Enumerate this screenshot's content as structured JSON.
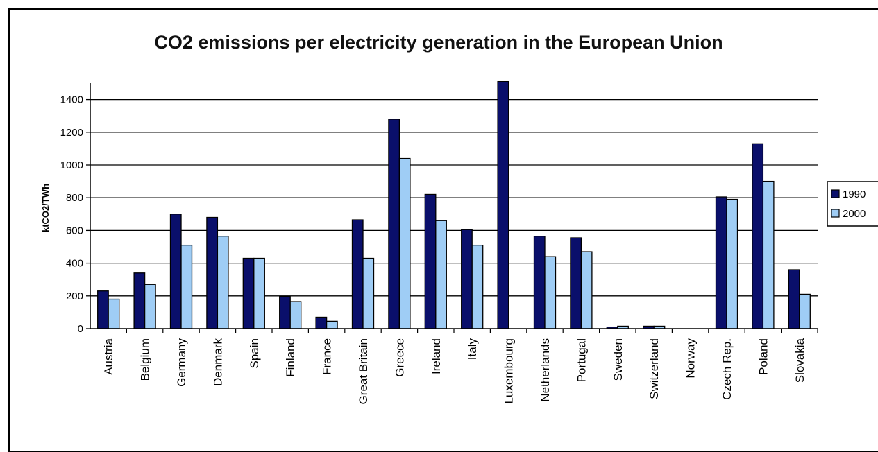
{
  "chart_data": {
    "type": "bar",
    "title": "CO2 emissions per electricity generation in the European Union",
    "xlabel": "",
    "ylabel": "ktCO2/TWh",
    "ylim": [
      0,
      1500
    ],
    "yticks": [
      0,
      200,
      400,
      600,
      800,
      1000,
      1200,
      1400
    ],
    "grid": true,
    "legend_position": "right",
    "categories": [
      "Austria",
      "Belgium",
      "Germany",
      "Denmark",
      "Spain",
      "Finland",
      "France",
      "Great Britain",
      "Greece",
      "Ireland",
      "Italy",
      "Luxembourg",
      "Netherlands",
      "Portugal",
      "Sweden",
      "Switzerland",
      "Norway",
      "Czech Rep.",
      "Poland",
      "Slovakia"
    ],
    "series": [
      {
        "name": "1990",
        "color": "#0a0f6b",
        "values": [
          230,
          340,
          700,
          680,
          430,
          195,
          70,
          665,
          1280,
          820,
          605,
          1510,
          565,
          555,
          10,
          15,
          0,
          805,
          1130,
          360
        ]
      },
      {
        "name": "2000",
        "color": "#9fcdf5",
        "values": [
          180,
          270,
          510,
          565,
          430,
          165,
          45,
          430,
          1040,
          660,
          510,
          0,
          440,
          470,
          15,
          15,
          0,
          790,
          900,
          210
        ]
      }
    ]
  }
}
